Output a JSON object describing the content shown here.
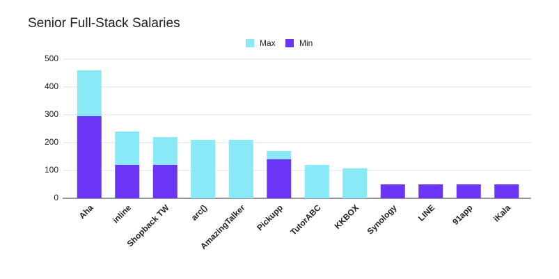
{
  "chart_data": {
    "type": "stacked_bar",
    "title": "Senior Full-Stack Salaries",
    "categories": [
      "Aha",
      "inline",
      "Shopback TW",
      "arc()",
      "AmazingTalker",
      "Pickupp",
      "TutorABC",
      "KKBOX",
      "Synology",
      "LINE",
      "91app",
      "iKala"
    ],
    "series": [
      {
        "name": "Max",
        "color": "#8ae9f7",
        "values": [
          165,
          120,
          100,
          210,
          210,
          30,
          120,
          108,
          0,
          0,
          0,
          0
        ]
      },
      {
        "name": "Min",
        "color": "#6a35f5",
        "values": [
          295,
          120,
          120,
          0,
          0,
          140,
          0,
          0,
          50,
          50,
          50,
          50
        ]
      }
    ],
    "ylim": [
      0,
      500
    ],
    "yticks": [
      0,
      100,
      200,
      300,
      400,
      500
    ],
    "grid": true,
    "legend": "top"
  }
}
